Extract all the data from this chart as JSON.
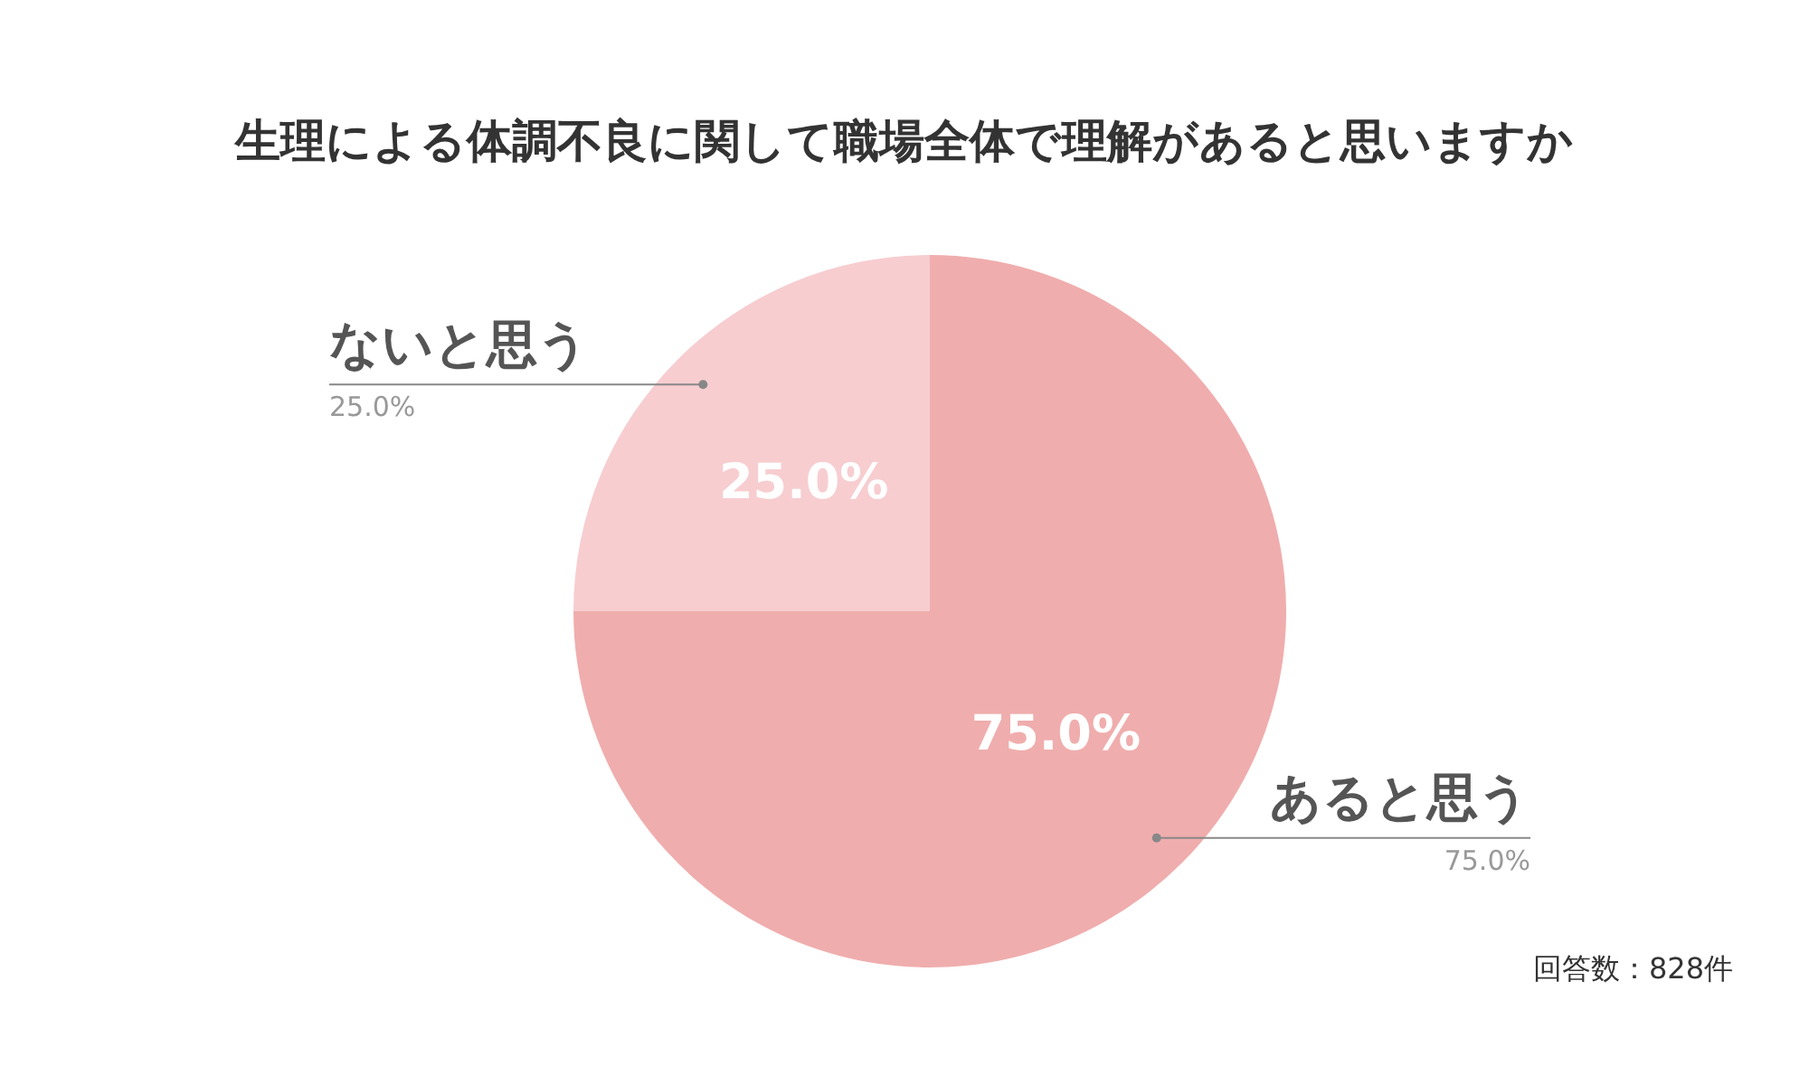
{
  "chart_data": {
    "type": "pie",
    "title": "生理による体調不良に関して職場全体で理解があると思いますか",
    "categories": [
      "あると思う",
      "ないと思う"
    ],
    "values": [
      75,
      25
    ],
    "colors": [
      "#f0adad",
      "#f7cdd0"
    ],
    "value_labels": [
      "75.0%",
      "25.0%"
    ],
    "annotations": [
      "回答数：828件"
    ],
    "legend": false
  }
}
